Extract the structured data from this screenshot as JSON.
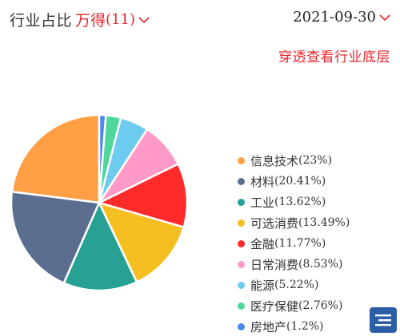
{
  "header": {
    "title": "行业占比",
    "source_name": "万得",
    "source_count": "(11)",
    "date": "2021-09-30"
  },
  "drill_link": "穿透查看行业底层",
  "chart_data": {
    "type": "pie",
    "slices": [
      {
        "label": "信息技术",
        "pct_text": "(23%)",
        "value": 23,
        "color": "#ff9f45"
      },
      {
        "label": "材料",
        "pct_text": "(20.41%)",
        "value": 20.41,
        "color": "#5b6e90"
      },
      {
        "label": "工业",
        "pct_text": "(13.62%)",
        "value": 13.62,
        "color": "#26a193"
      },
      {
        "label": "可选消费",
        "pct_text": "(13.49%)",
        "value": 13.49,
        "color": "#f5be21"
      },
      {
        "label": "金融",
        "pct_text": "(11.77%)",
        "value": 11.77,
        "color": "#ff2b2b"
      },
      {
        "label": "日常消费",
        "pct_text": "(8.53%)",
        "value": 8.53,
        "color": "#ff9ac8"
      },
      {
        "label": "能源",
        "pct_text": "(5.22%)",
        "value": 5.22,
        "color": "#6fcaf0"
      },
      {
        "label": "医疗保健",
        "pct_text": "(2.76%)",
        "value": 2.76,
        "color": "#4ed69b"
      },
      {
        "label": "房地产",
        "pct_text": "(1.2%)",
        "value": 1.2,
        "color": "#4a86f0"
      }
    ],
    "start_angle_deg": 90,
    "direction": "counterclockwise",
    "legend_position": "right"
  },
  "colors": {
    "accent": "#e8252a",
    "button": "#2a5fa8"
  },
  "icons": {
    "source_dropdown": "chevron-down-icon",
    "date_dropdown": "chevron-down-icon",
    "corner_button": "menu-icon"
  }
}
